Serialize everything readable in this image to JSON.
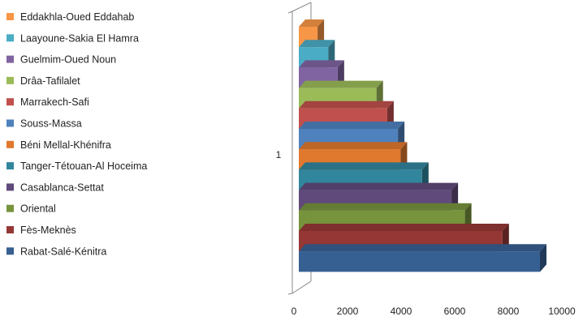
{
  "chart_data": {
    "type": "bar",
    "orientation": "horizontal",
    "style": "3d-stacked-bars",
    "categories": [
      "1"
    ],
    "legend_position": "left",
    "xlim": [
      0,
      10000
    ],
    "x_ticks": [
      "0",
      "2000",
      "4000",
      "6000",
      "8000",
      "10000"
    ],
    "grid": false,
    "series": [
      {
        "name": "Eddakhla-Oued Eddahab",
        "value": 700,
        "color": "#F79646"
      },
      {
        "name": "Laayoune-Sakia El Hamra",
        "value": 1100,
        "color": "#4BACC6"
      },
      {
        "name": "Guelmim-Oued Noun",
        "value": 1450,
        "color": "#8064A2"
      },
      {
        "name": "Drâa-Tafilalet",
        "value": 2900,
        "color": "#9BBB59"
      },
      {
        "name": "Marrakech-Safi",
        "value": 3300,
        "color": "#C0504D"
      },
      {
        "name": "Souss-Massa",
        "value": 3700,
        "color": "#4F81BD"
      },
      {
        "name": "Béni Mellal-Khénifra",
        "value": 3800,
        "color": "#E0782E"
      },
      {
        "name": "Tanger-Tétouan-Al Hoceima",
        "value": 4600,
        "color": "#31859C"
      },
      {
        "name": "Casablanca-Settat",
        "value": 5700,
        "color": "#604A7B"
      },
      {
        "name": "Oriental",
        "value": 6200,
        "color": "#77933C"
      },
      {
        "name": "Fès-Meknès",
        "value": 7600,
        "color": "#953735"
      },
      {
        "name": "Rabat-Salé-Kénitra",
        "value": 9000,
        "color": "#376092"
      }
    ]
  }
}
